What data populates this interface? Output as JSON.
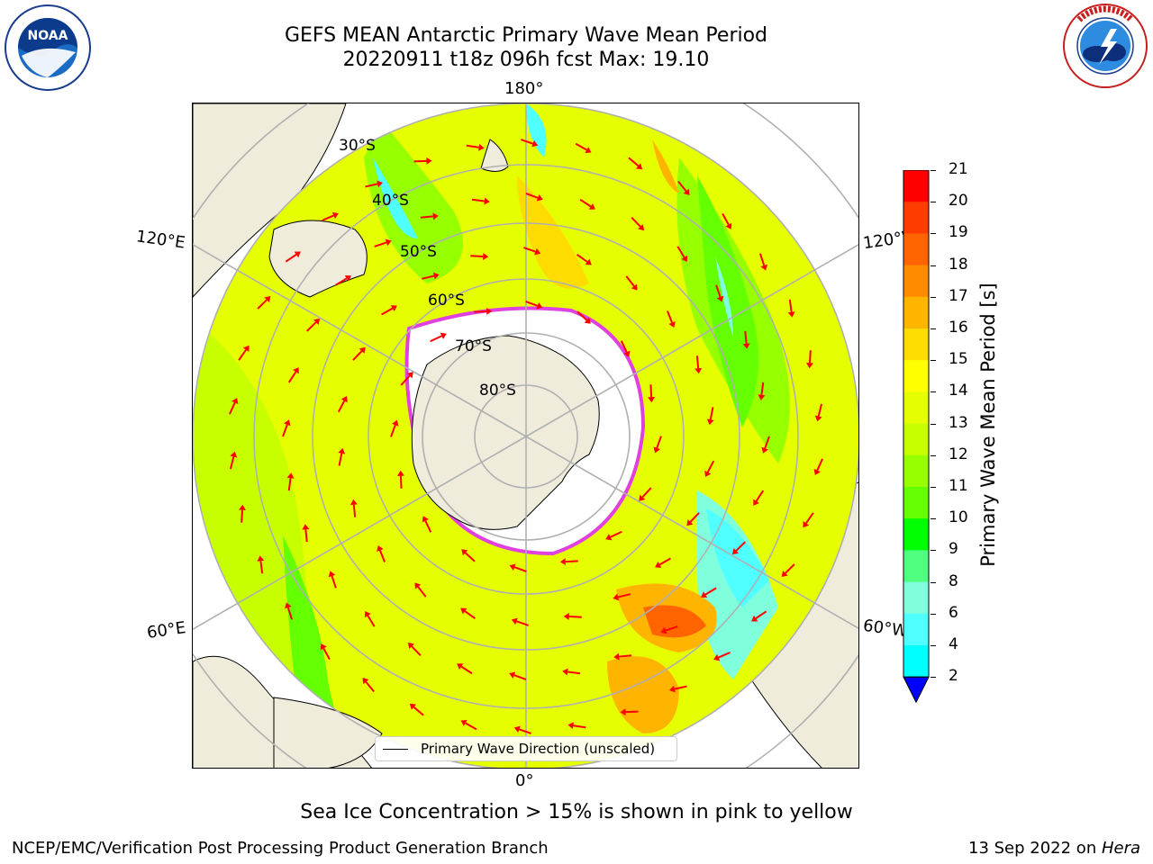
{
  "header": {
    "title_line1": "GEFS MEAN Antarctic Primary Wave Mean Period",
    "title_line2": "20220911 t18z 096h fcst   Max: 19.10"
  },
  "logos": {
    "noaa": {
      "text": "NOAA",
      "ring_text": "NATIONAL OCEANIC AND ATMOSPHERIC ADMINISTRATION",
      "ring_text_bottom": "U.S. DEPARTMENT OF COMMERCE"
    },
    "nws": {
      "ring_text": "NATIONAL WEATHER SERVICE"
    }
  },
  "map": {
    "projection": "south-polar-stereographic",
    "longitude_labels": {
      "top": "180°",
      "bottom": "0°",
      "upper_left": "120°E",
      "upper_right": "120°W",
      "lower_left": "60°E",
      "lower_right": "60°W"
    },
    "latitude_labels": [
      "30°S",
      "40°S",
      "50°S",
      "60°S",
      "70°S",
      "80°S"
    ],
    "legend": {
      "label": "Primary Wave Direction (unscaled)"
    },
    "colors": {
      "land": "#efecdc",
      "sea_ice_edge": "#e040e0",
      "arrow": "#ff0000"
    }
  },
  "colorbar": {
    "label": "Primary Wave Mean Period [s]",
    "ticks": [
      "21",
      "20",
      "19",
      "18",
      "17",
      "16",
      "15",
      "14",
      "13",
      "12",
      "11",
      "10",
      "9",
      "8",
      "6",
      "4",
      "2"
    ],
    "colors": [
      "#ff0000",
      "#ff3c00",
      "#ff6400",
      "#ff8c00",
      "#ffb400",
      "#ffdc00",
      "#ffff00",
      "#e6ff00",
      "#c8ff00",
      "#96ff00",
      "#64ff00",
      "#00ff00",
      "#50ff80",
      "#80ffdc",
      "#50ffff",
      "#00ffff",
      "#00c0ff",
      "#0070ff"
    ],
    "extend_color": "#0000ff"
  },
  "caption": "Sea Ice Concentration > 15% is shown in pink to yellow",
  "footer": {
    "left": "NCEP/EMC/Verification Post Processing Product Generation Branch",
    "right_date": "13 Sep 2022 on ",
    "right_host": "Hera"
  }
}
